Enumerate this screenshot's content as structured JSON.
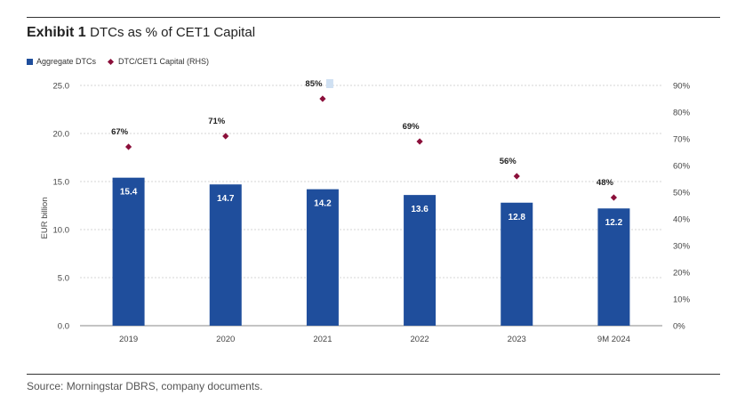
{
  "header": {
    "exhibit_label": "Exhibit 1",
    "title": "DTCs as % of CET1 Capital"
  },
  "footer": {
    "source": "Source: Morningstar DBRS, company documents."
  },
  "colors": {
    "bar": "#1f4e9c",
    "marker": "#8b0f3a",
    "grid": "#c8c8c8",
    "highlight": "#cfe0f2"
  },
  "chart_data": {
    "type": "bar",
    "title": "DTCs as % of CET1 Capital",
    "categories": [
      "2019",
      "2020",
      "2021",
      "2022",
      "2023",
      "9M 2024"
    ],
    "series": [
      {
        "name": "Aggregate DTCs",
        "type": "bar",
        "axis": "left",
        "values": [
          15.4,
          14.7,
          14.2,
          13.6,
          12.8,
          12.2
        ],
        "labels": [
          "15.4",
          "14.7",
          "14.2",
          "13.6",
          "12.8",
          "12.2"
        ]
      },
      {
        "name": "DTC/CET1 Capital (RHS)",
        "type": "scatter",
        "axis": "right",
        "values": [
          67,
          71,
          85,
          69,
          56,
          48
        ],
        "labels": [
          "67%",
          "71%",
          "85%",
          "69%",
          "56%",
          "48%"
        ]
      }
    ],
    "ylabel": "EUR billion",
    "ylim": [
      0,
      25
    ],
    "yticks": [
      "0.0",
      "5.0",
      "10.0",
      "15.0",
      "20.0",
      "25.0"
    ],
    "y2lim": [
      0,
      90
    ],
    "y2ticks": [
      "0%",
      "10%",
      "20%",
      "30%",
      "40%",
      "50%",
      "60%",
      "70%",
      "80%",
      "90%"
    ],
    "grid": true,
    "legend": "top-left"
  }
}
